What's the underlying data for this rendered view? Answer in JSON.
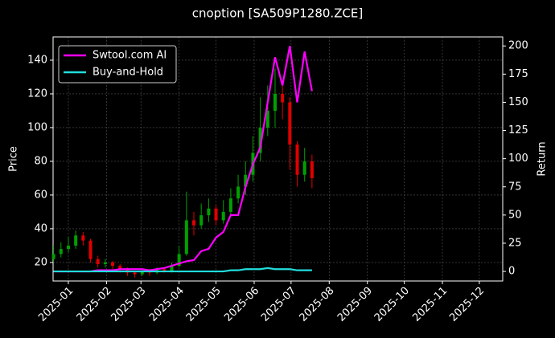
{
  "chart_data": {
    "type": "candlestick",
    "title": "cnoption [SA509P1280.ZCE]",
    "y_label": "Price",
    "y2_label": "Return",
    "x": [
      -12,
      -6,
      0,
      6,
      12,
      18,
      24,
      30,
      36,
      42,
      48,
      54,
      60,
      66,
      72,
      78,
      84,
      90,
      96,
      102,
      108,
      114,
      120,
      126,
      132,
      138,
      144,
      150,
      156,
      162,
      168,
      174,
      180,
      186,
      192,
      198
    ],
    "open": [
      22,
      25,
      28,
      30,
      36,
      33,
      22,
      19,
      20,
      18,
      16,
      14,
      13,
      15,
      14,
      16,
      15,
      18,
      25,
      45,
      42,
      48,
      52,
      45,
      50,
      58,
      65,
      72,
      85,
      100,
      110,
      120,
      115,
      90,
      72,
      80
    ],
    "high": [
      30,
      32,
      35,
      39,
      38,
      34,
      24,
      22,
      21,
      19,
      17,
      15,
      16,
      16,
      17,
      17,
      20,
      30,
      62,
      50,
      55,
      58,
      54,
      57,
      64,
      72,
      80,
      95,
      118,
      125,
      135,
      128,
      118,
      92,
      88,
      84
    ],
    "low": [
      20,
      23,
      26,
      28,
      30,
      20,
      17,
      17,
      16,
      14,
      12,
      11,
      12,
      12,
      13,
      14,
      14,
      17,
      24,
      36,
      40,
      44,
      42,
      43,
      48,
      55,
      60,
      68,
      80,
      95,
      100,
      105,
      75,
      65,
      68,
      64
    ],
    "close": [
      25,
      28,
      30,
      36,
      33,
      22,
      19,
      20,
      18,
      16,
      14,
      13,
      15,
      14,
      16,
      15,
      18,
      25,
      45,
      42,
      48,
      52,
      45,
      50,
      58,
      65,
      72,
      85,
      100,
      110,
      120,
      115,
      90,
      72,
      80,
      70
    ],
    "up_color": "#00a000",
    "down_color": "#e00000",
    "series": [
      {
        "name": "Swtool.com AI",
        "color": "#ff00ff",
        "axis": "y2",
        "values": [
          0,
          0,
          0,
          0,
          0,
          0,
          1,
          1,
          1,
          2,
          2,
          2,
          2,
          1,
          2,
          3,
          5,
          7,
          9,
          10,
          18,
          20,
          30,
          35,
          50,
          50,
          75,
          95,
          110,
          150,
          190,
          165,
          200,
          150,
          195,
          160
        ]
      },
      {
        "name": "Buy-and-Hold",
        "color": "#22dddd",
        "axis": "y2",
        "values": [
          0,
          0,
          0,
          0,
          0,
          0,
          0,
          0,
          0,
          0,
          0,
          0,
          0,
          0,
          0,
          0,
          0,
          0,
          0,
          0,
          0,
          0,
          0,
          0,
          1,
          1,
          2,
          2,
          2,
          3,
          2,
          2,
          2,
          1,
          1,
          1
        ]
      }
    ],
    "xlim": [
      -12.4,
      353
    ],
    "xticks": [
      {
        "value": 0,
        "label": "2025-01"
      },
      {
        "value": 31,
        "label": "2025-02"
      },
      {
        "value": 59,
        "label": "2025-03"
      },
      {
        "value": 90,
        "label": "2025-04"
      },
      {
        "value": 120,
        "label": "2025-05"
      },
      {
        "value": 151,
        "label": "2025-06"
      },
      {
        "value": 181,
        "label": "2025-07"
      },
      {
        "value": 212,
        "label": "2025-08"
      },
      {
        "value": 243,
        "label": "2025-09"
      },
      {
        "value": 273,
        "label": "2025-10"
      },
      {
        "value": 304,
        "label": "2025-11"
      },
      {
        "value": 334,
        "label": "2025-12"
      }
    ],
    "ylim": [
      9,
      153.8
    ],
    "yticks": [
      20,
      40,
      60,
      80,
      100,
      120,
      140
    ],
    "y2lim": [
      -8.5,
      208
    ],
    "y2ticks": [
      0,
      25,
      50,
      75,
      100,
      125,
      150,
      175,
      200
    ],
    "grid": true,
    "legend": "upper left"
  }
}
